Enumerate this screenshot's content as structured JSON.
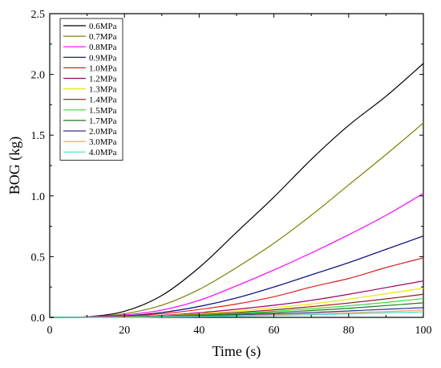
{
  "chart_data": {
    "type": "line",
    "title": "",
    "xlabel": "Time (s)",
    "ylabel": "BOG (kg)",
    "xlim": [
      0,
      100
    ],
    "ylim": [
      0,
      2.5
    ],
    "x_ticks": [
      0,
      20,
      40,
      60,
      80,
      100
    ],
    "y_ticks": [
      0.0,
      0.5,
      1.0,
      1.5,
      2.0,
      2.5
    ],
    "x_tick_labels": [
      "0",
      "20",
      "40",
      "60",
      "80",
      "100"
    ],
    "y_tick_labels": [
      "0.0",
      "0.5",
      "1.0",
      "1.5",
      "2.0",
      "2.5"
    ],
    "grid": false,
    "legend_position": "top-left",
    "x": [
      0,
      10,
      20,
      30,
      40,
      50,
      60,
      70,
      80,
      90,
      100
    ],
    "series": [
      {
        "name": "0.6MPa",
        "color": "#000000",
        "values": [
          0,
          0.005,
          0.05,
          0.18,
          0.41,
          0.7,
          0.99,
          1.3,
          1.58,
          1.82,
          2.09
        ]
      },
      {
        "name": "0.7MPa",
        "color": "#808000",
        "values": [
          0,
          0.004,
          0.03,
          0.1,
          0.23,
          0.41,
          0.61,
          0.84,
          1.09,
          1.34,
          1.6
        ]
      },
      {
        "name": "0.8MPa",
        "color": "#ff00ff",
        "values": [
          0,
          0.003,
          0.02,
          0.06,
          0.14,
          0.26,
          0.39,
          0.53,
          0.68,
          0.84,
          1.02
        ]
      },
      {
        "name": "0.9MPa",
        "color": "#000080",
        "values": [
          0,
          0.002,
          0.012,
          0.04,
          0.09,
          0.16,
          0.25,
          0.35,
          0.45,
          0.56,
          0.67
        ]
      },
      {
        "name": "1.0MPa",
        "color": "#e0201b",
        "values": [
          0,
          0.0015,
          0.009,
          0.03,
          0.065,
          0.11,
          0.17,
          0.25,
          0.32,
          0.41,
          0.49
        ]
      },
      {
        "name": "1.2MPa",
        "color": "#a0006a",
        "values": [
          0,
          0.001,
          0.006,
          0.017,
          0.038,
          0.067,
          0.1,
          0.14,
          0.19,
          0.245,
          0.3
        ]
      },
      {
        "name": "1.3MPa",
        "color": "#e8e800",
        "values": [
          0,
          0.0008,
          0.005,
          0.014,
          0.03,
          0.052,
          0.08,
          0.11,
          0.15,
          0.195,
          0.24
        ]
      },
      {
        "name": "1.4MPa",
        "color": "#8b1a1a",
        "values": [
          0,
          0.0006,
          0.004,
          0.011,
          0.023,
          0.04,
          0.062,
          0.088,
          0.118,
          0.152,
          0.19
        ]
      },
      {
        "name": "1.5MPa",
        "color": "#33dd33",
        "values": [
          0,
          0.0005,
          0.003,
          0.009,
          0.019,
          0.033,
          0.05,
          0.071,
          0.095,
          0.123,
          0.155
        ]
      },
      {
        "name": "1.7MPa",
        "color": "#1e7b1e",
        "values": [
          0,
          0.0004,
          0.0025,
          0.007,
          0.015,
          0.026,
          0.04,
          0.056,
          0.075,
          0.097,
          0.12
        ]
      },
      {
        "name": "2.0MPa",
        "color": "#33338a",
        "values": [
          0,
          0.0003,
          0.002,
          0.005,
          0.011,
          0.019,
          0.029,
          0.04,
          0.053,
          0.067,
          0.08
        ]
      },
      {
        "name": "3.0MPa",
        "color": "#f4a460",
        "values": [
          0,
          0.0002,
          0.0015,
          0.004,
          0.008,
          0.014,
          0.021,
          0.029,
          0.038,
          0.048,
          0.06
        ]
      },
      {
        "name": "4.0MPa",
        "color": "#40e0d0",
        "values": [
          0,
          0.0002,
          0.001,
          0.003,
          0.006,
          0.011,
          0.016,
          0.022,
          0.029,
          0.037,
          0.045
        ]
      }
    ]
  }
}
